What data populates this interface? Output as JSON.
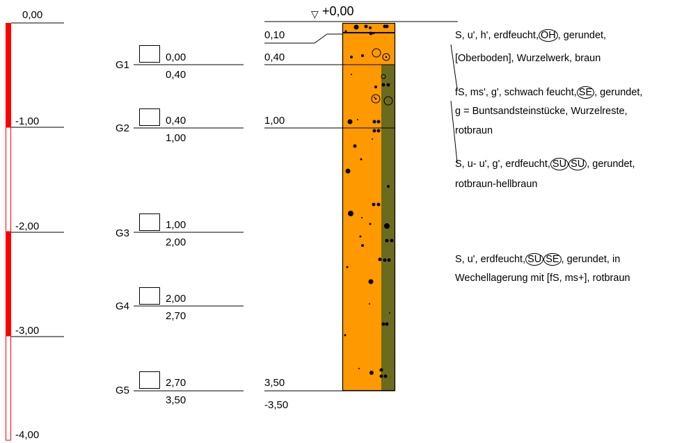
{
  "depth_scale": {
    "labels": [
      "0,00",
      "-1,00",
      "-2,00",
      "-3,00",
      "-4,00"
    ],
    "color": "#ff0000"
  },
  "samples": [
    {
      "id": "G1",
      "top": "0,00",
      "bottom": "0,40"
    },
    {
      "id": "G2",
      "top": "0,40",
      "bottom": "1,00"
    },
    {
      "id": "G3",
      "top": "1,00",
      "bottom": "2,00"
    },
    {
      "id": "G4",
      "top": "2,00",
      "bottom": "2,70"
    },
    {
      "id": "G5",
      "top": "2,70",
      "bottom": "3,50"
    }
  ],
  "profile": {
    "surface_symbol": "▽",
    "surface_label": "+0,00",
    "layer_boundaries": [
      "0,10",
      "0,40",
      "1,00",
      "3,50"
    ],
    "final_depth": "-3,50",
    "fill_color": "#ff9900",
    "moisture_color": "#6b6b1e"
  },
  "layers": [
    {
      "line1_pre": "S, u', h', erdfeucht,",
      "line1_codes": [
        "OH"
      ],
      "line1_post": ", gerundet,",
      "line2": "[Oberboden], Wurzelwerk, braun",
      "line3": ""
    },
    {
      "line1_pre": "fS, ms', g', schwach feucht,",
      "line1_codes": [
        "SE"
      ],
      "line1_post": ", gerundet,",
      "line2": "g = Buntsandsteinstücke, Wurzelreste,",
      "line3": "rotbraun"
    },
    {
      "line1_pre": "S, u- u', g', erdfeucht,",
      "line1_codes": [
        "SU",
        "SU"
      ],
      "line1_post": ", gerundet,",
      "line2": "rotbraun-hellbraun",
      "line3": ""
    },
    {
      "line1_pre": "S, u', erdfeucht,",
      "line1_codes": [
        "SU",
        "SE"
      ],
      "line1_post": ", gerundet, in",
      "line2": "Wechellagerung mit [fS, ms+], rotbraun",
      "line3": ""
    }
  ]
}
